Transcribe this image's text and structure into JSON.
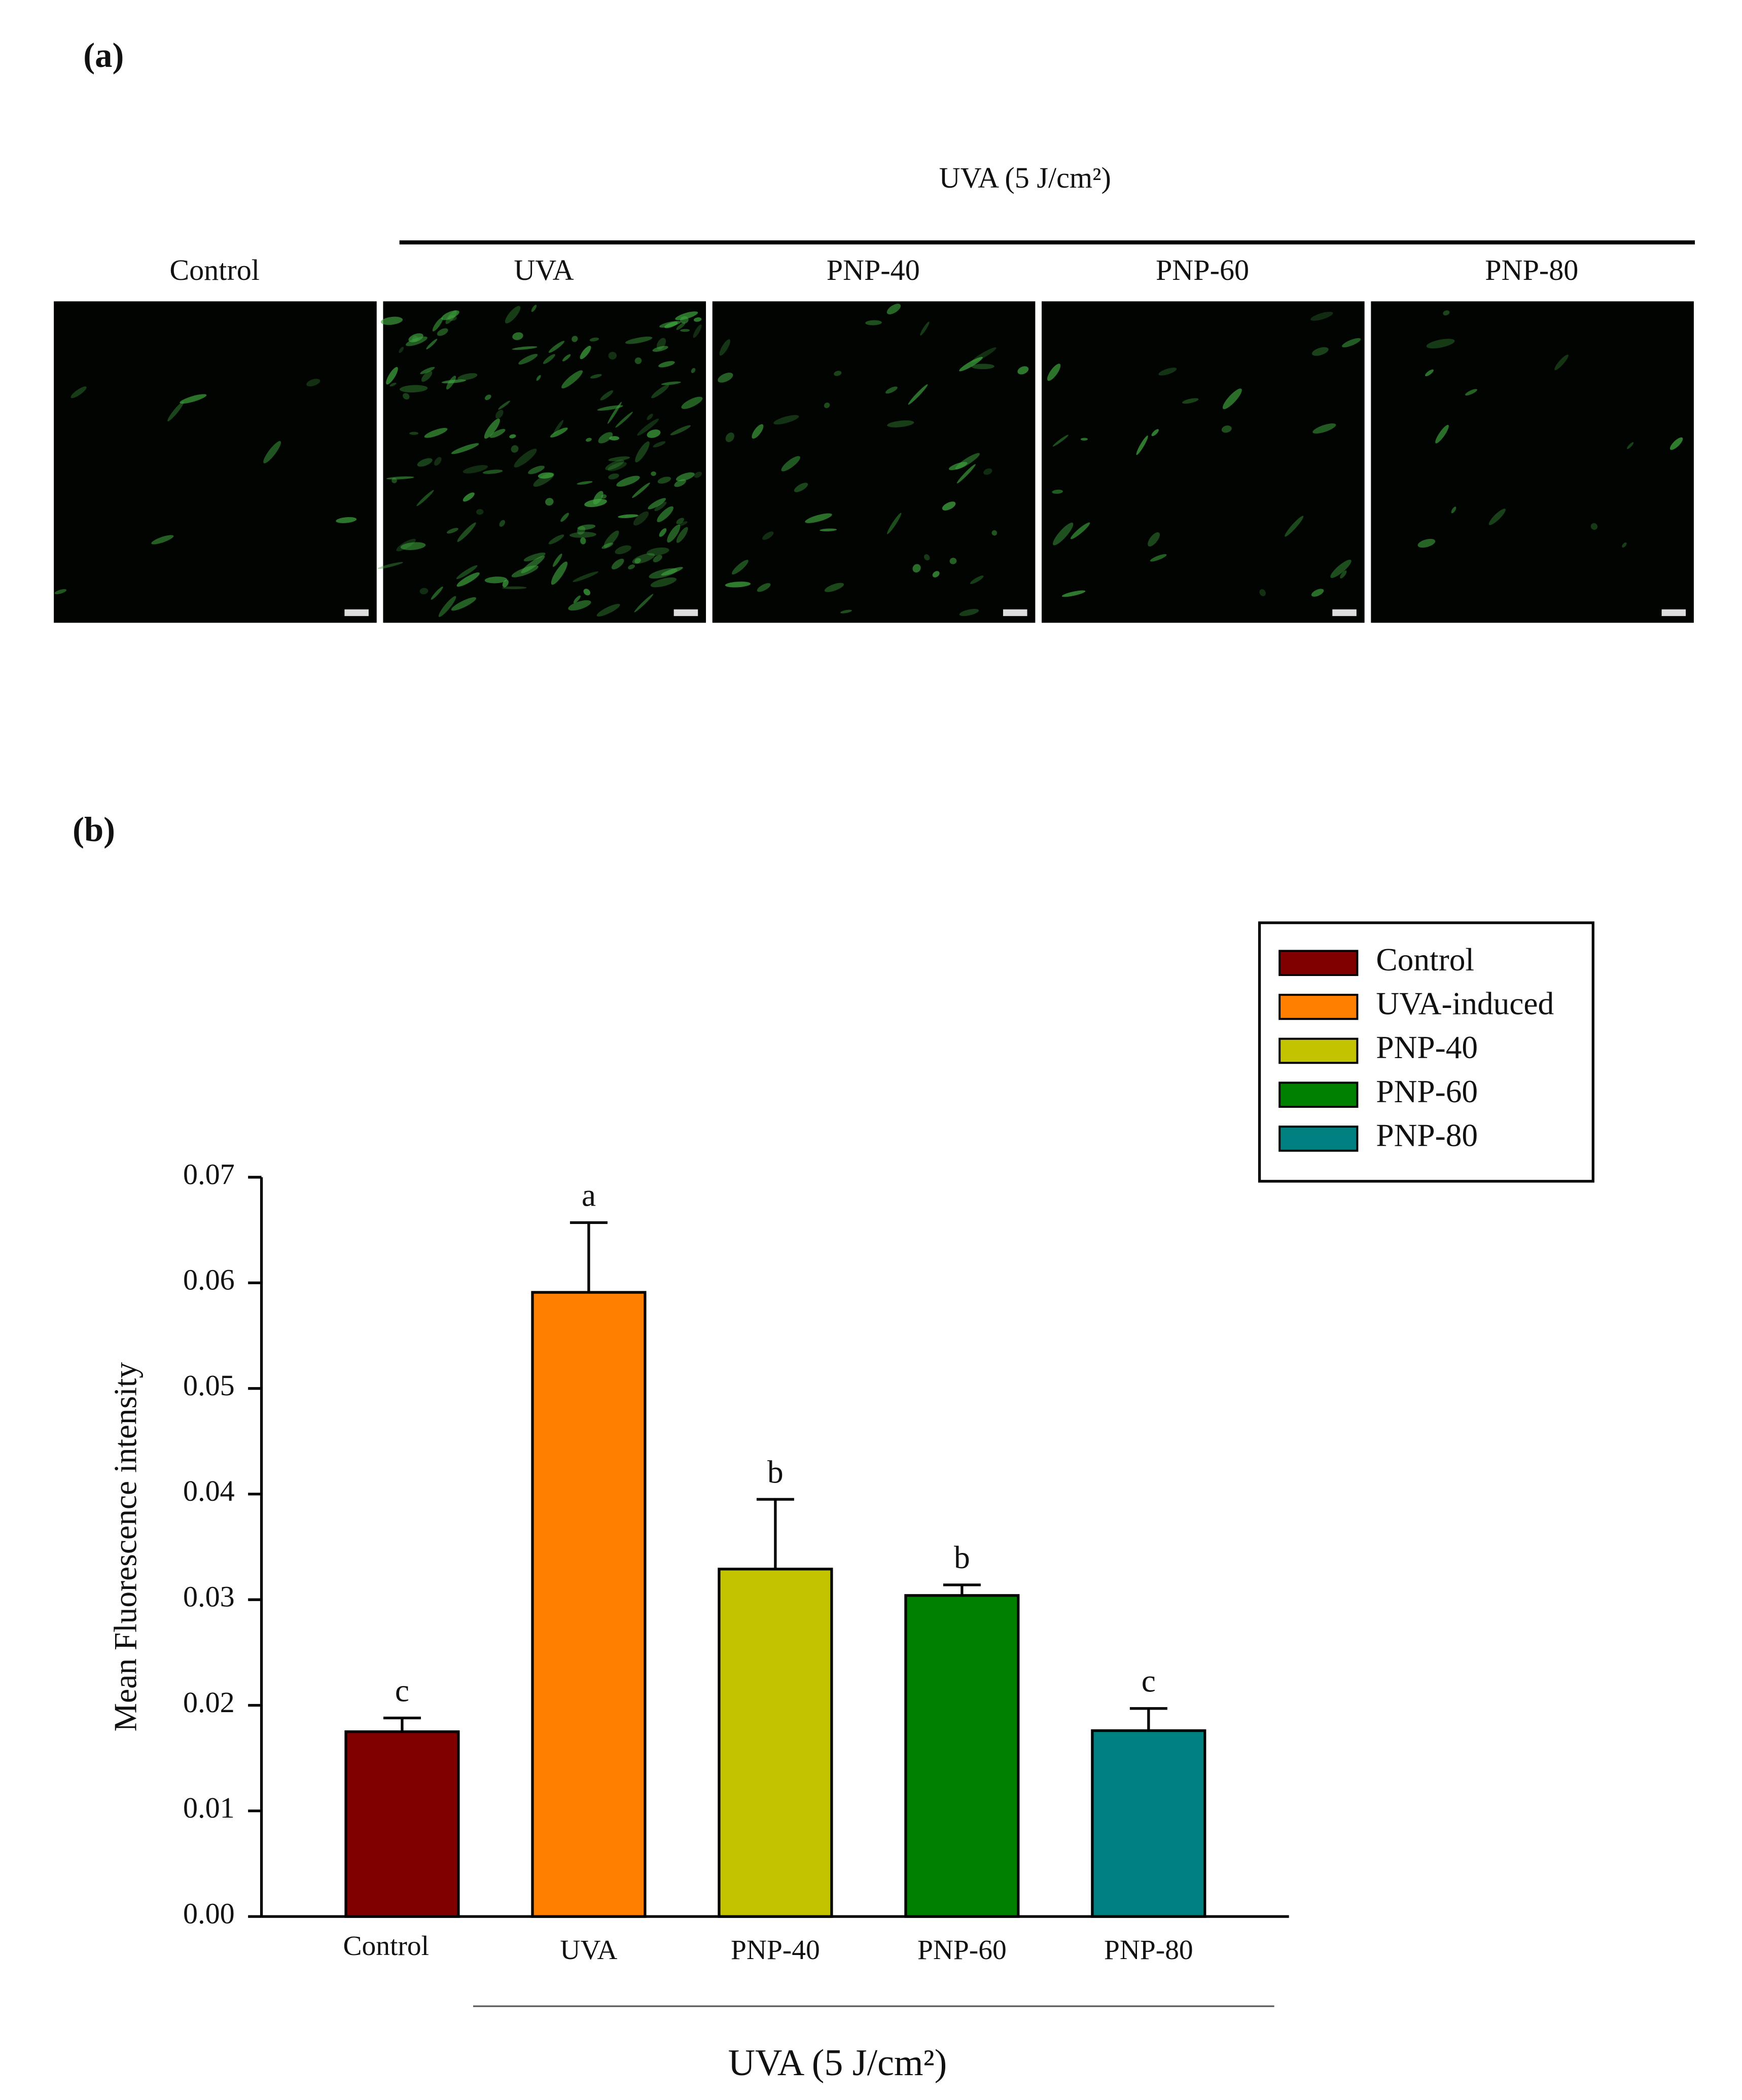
{
  "figure": {
    "panel_a_label": "(a)",
    "panel_b_label": "(b)",
    "header": "UVA (5 J/cm²)",
    "panels": [
      "Control",
      "UVA",
      "PNP-40",
      "PNP-60",
      "PNP-80"
    ]
  },
  "chart_data": {
    "type": "bar",
    "categories": [
      "Control",
      "UVA",
      "PNP-40",
      "PNP-60",
      "PNP-80"
    ],
    "values": [
      0.0175,
      0.0591,
      0.0329,
      0.0304,
      0.0176
    ],
    "errors": [
      0.0013,
      0.0066,
      0.0066,
      0.001,
      0.0021
    ],
    "annotations": [
      "c",
      "a",
      "b",
      "b",
      "c"
    ],
    "colors": [
      "#800000",
      "#ff7f00",
      "#c3c300",
      "#008000",
      "#008080"
    ],
    "legend": [
      "Control",
      "UVA-induced",
      "PNP-40",
      "PNP-60",
      "PNP-80"
    ],
    "ylabel": "Mean Fluorescence intensity",
    "xlabel": "UVA (5 J/cm²)",
    "ylim": [
      0,
      0.07
    ],
    "yticks": [
      {
        "value": 0,
        "label": "0.00"
      },
      {
        "value": 0.01,
        "label": "0.01"
      },
      {
        "value": 0.02,
        "label": "0.02"
      },
      {
        "value": 0.03,
        "label": "0.03"
      },
      {
        "value": 0.04,
        "label": "0.04"
      },
      {
        "value": 0.05,
        "label": "0.05"
      },
      {
        "value": 0.06,
        "label": "0.06"
      },
      {
        "value": 0.07,
        "label": "0.07"
      }
    ]
  }
}
